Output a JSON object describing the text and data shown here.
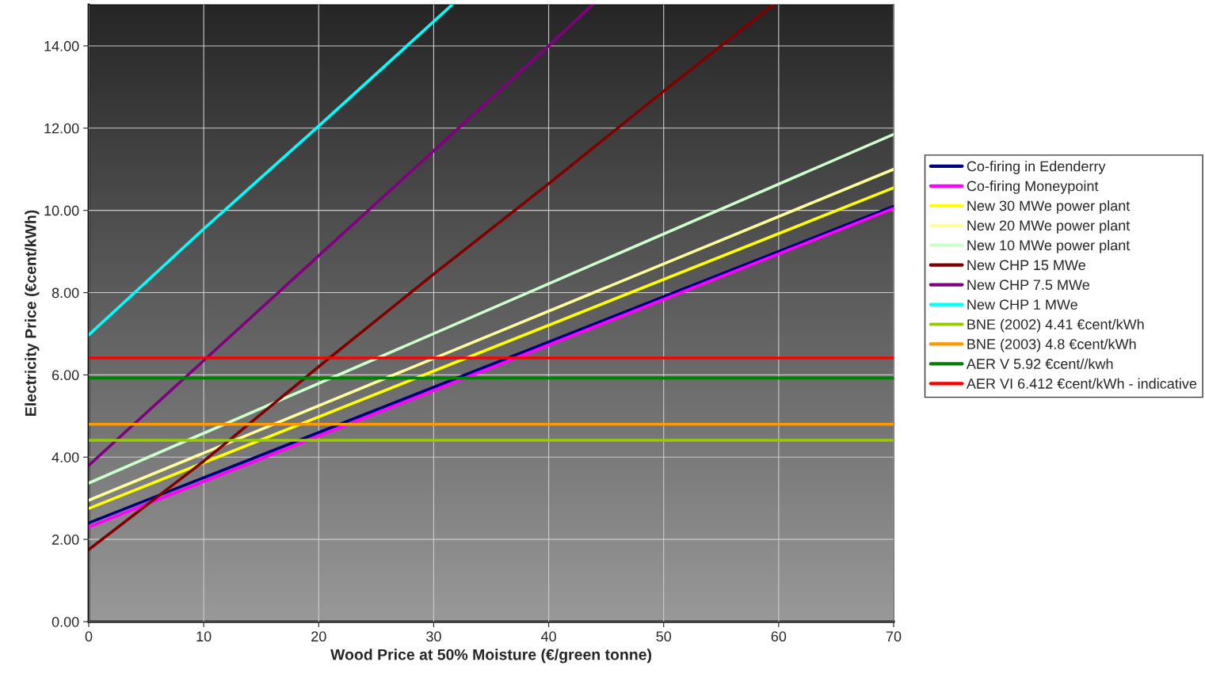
{
  "chart_data": {
    "type": "line",
    "xlabel": "Wood Price at 50% Moisture (€/green tonne)",
    "ylabel": "Electricity Price (€cent/kWh)",
    "xlim": [
      0,
      70
    ],
    "xticks": [
      0,
      10,
      20,
      30,
      40,
      50,
      60,
      70
    ],
    "ylim": [
      0,
      15
    ],
    "yticks": [
      {
        "value": 0,
        "label": "0.00"
      },
      {
        "value": 2,
        "label": "2.00"
      },
      {
        "value": 4,
        "label": "4.00"
      },
      {
        "value": 6,
        "label": "6.00"
      },
      {
        "value": 8,
        "label": "8.00"
      },
      {
        "value": 10,
        "label": "10.00"
      },
      {
        "value": 12,
        "label": "12.00"
      },
      {
        "value": 14,
        "label": "14.00"
      }
    ],
    "grid": true,
    "legend": "right",
    "marker": "none",
    "line_style": "solid",
    "series": [
      {
        "name": "Co-firing in Edenderry",
        "color": "#000080",
        "x": [
          0,
          70
        ],
        "values": [
          2.4,
          10.1
        ]
      },
      {
        "name": "Co-firing Moneypoint",
        "color": "#ff00ff",
        "x": [
          0,
          70
        ],
        "values": [
          2.3,
          10.05
        ]
      },
      {
        "name": "New 30 MWe power plant",
        "color": "#ffff00",
        "x": [
          0,
          70
        ],
        "values": [
          2.75,
          10.55
        ]
      },
      {
        "name": "New 20 MWe power plant",
        "color": "#ffff99",
        "x": [
          0,
          70
        ],
        "values": [
          2.95,
          11.0
        ]
      },
      {
        "name": "New 10 MWe power plant",
        "color": "#ccffcc",
        "x": [
          0,
          44,
          70
        ],
        "values": [
          3.37,
          8.7,
          11.85
        ]
      },
      {
        "name": "New CHP 15 MWe",
        "color": "#800000",
        "x": [
          0,
          10,
          20,
          30,
          40,
          50,
          59.5
        ],
        "values": [
          1.75,
          3.9,
          6.2,
          8.45,
          10.65,
          12.9,
          15.0
        ]
      },
      {
        "name": "New CHP 7.5 MWe",
        "color": "#800080",
        "x": [
          0,
          10,
          20,
          30,
          40,
          43.8
        ],
        "values": [
          3.8,
          6.35,
          8.9,
          11.45,
          14.0,
          15.0
        ]
      },
      {
        "name": "New CHP 1 MWe",
        "color": "#00ffff",
        "x": [
          0,
          10,
          20,
          31.6
        ],
        "values": [
          6.97,
          9.55,
          12.05,
          15.0
        ]
      },
      {
        "name": "BNE (2002) 4.41 €cent/kWh",
        "color": "#99cc00",
        "x": [
          0,
          70
        ],
        "values": [
          4.41,
          4.41
        ]
      },
      {
        "name": "BNE (2003) 4.8 €cent/kWh",
        "color": "#ff9900",
        "x": [
          0,
          70
        ],
        "values": [
          4.8,
          4.8
        ]
      },
      {
        "name": "AER V 5.92 €cent//kwh",
        "color": "#008000",
        "x": [
          0,
          70
        ],
        "values": [
          5.92,
          5.92
        ]
      },
      {
        "name": "AER VI 6.412 €cent/kWh - indicative",
        "color": "#ff0000",
        "x": [
          0,
          70
        ],
        "values": [
          6.412,
          6.412
        ]
      }
    ]
  }
}
